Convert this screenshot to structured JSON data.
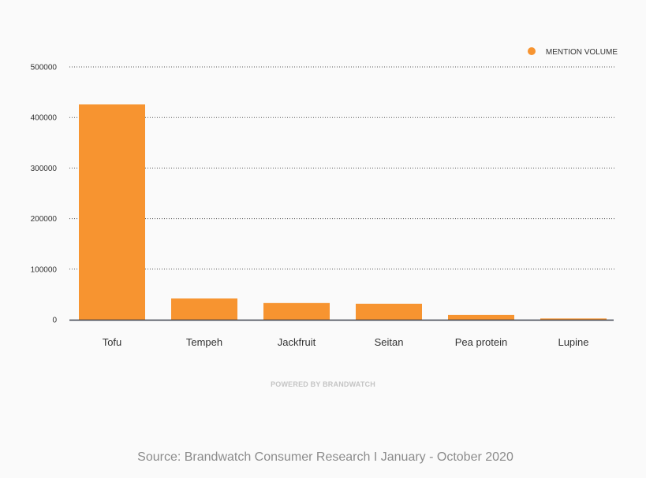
{
  "chart_data": {
    "type": "bar",
    "categories": [
      "Tofu",
      "Tempeh",
      "Jackfruit",
      "Seitan",
      "Pea protein",
      "Lupine"
    ],
    "series": [
      {
        "name": "MENTION VOLUME",
        "values": [
          426000,
          42000,
          33000,
          31500,
          9500,
          2500
        ]
      }
    ],
    "yticks": [
      "0",
      "100000",
      "200000",
      "300000",
      "400000",
      "500000"
    ],
    "ylim": [
      0,
      500000
    ],
    "grid": true,
    "legend_position": "top-right",
    "bar_color": "#f79430"
  },
  "branding": {
    "powered_by": "POWERED BY BRANDWATCH"
  },
  "source": {
    "text": "Source: Brandwatch Consumer Research I January - October 2020"
  }
}
